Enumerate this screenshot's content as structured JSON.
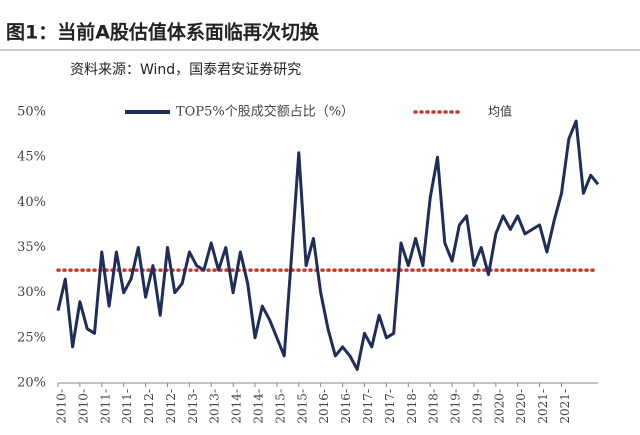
{
  "chart_data": {
    "type": "line",
    "title": "图1：当前A股估值体系面临再次切换",
    "subtitle": "资料来源：Wind，国泰君安证券研究",
    "categories": [
      "2010-",
      null,
      null,
      "2010-",
      null,
      null,
      "2011-",
      null,
      null,
      "2011-",
      null,
      null,
      "2012-",
      null,
      null,
      "2012-",
      null,
      null,
      "2013-",
      null,
      null,
      "2013-",
      null,
      null,
      "2014-",
      null,
      null,
      "2014-",
      null,
      null,
      "2015-",
      null,
      null,
      "2015-",
      null,
      null,
      "2016-",
      null,
      null,
      "2016-",
      null,
      null,
      "2017-",
      null,
      null,
      "2017-",
      null,
      null,
      "2018-",
      null,
      null,
      "2018-",
      null,
      null,
      "2019-",
      null,
      null,
      "2019-",
      null,
      null,
      "2020-",
      null,
      null,
      "2020-",
      null,
      null,
      "2021-",
      null,
      null,
      "2021-",
      null,
      null,
      null,
      null,
      null
    ],
    "series": [
      {
        "name": "TOP5%个股成交额占比（%）",
        "color": "#1f2d5a",
        "values": [
          28,
          31.5,
          24,
          29,
          26,
          25.5,
          34.5,
          28.5,
          34.5,
          30,
          31.5,
          35,
          29.5,
          33,
          27.5,
          35,
          30,
          31,
          34.5,
          33,
          32.5,
          35.5,
          32.5,
          35,
          30,
          34.5,
          31,
          25,
          28.5,
          27,
          25,
          23,
          34,
          45.5,
          33,
          36,
          30,
          26,
          23,
          24,
          23,
          21.5,
          25.5,
          24,
          27.5,
          25,
          25.5,
          35.5,
          33,
          36,
          33,
          40.5,
          45,
          35.5,
          33.5,
          37.5,
          38.5,
          33,
          35,
          32,
          36.5,
          38.5,
          37,
          38.5,
          36.5,
          37,
          37.5,
          34.5,
          38,
          41,
          47,
          49,
          41,
          43,
          42
        ]
      }
    ],
    "reference_line": {
      "name": "均值",
      "color": "#c0392b",
      "value": 32.5
    },
    "ylim": [
      20,
      50
    ],
    "yticks": [
      {
        "value": 20,
        "label": "20%"
      },
      {
        "value": 25,
        "label": "25%"
      },
      {
        "value": 30,
        "label": "30%"
      },
      {
        "value": 35,
        "label": "35%"
      },
      {
        "value": 40,
        "label": "40%"
      },
      {
        "value": 45,
        "label": "45%"
      },
      {
        "value": 50,
        "label": "50%"
      }
    ]
  }
}
